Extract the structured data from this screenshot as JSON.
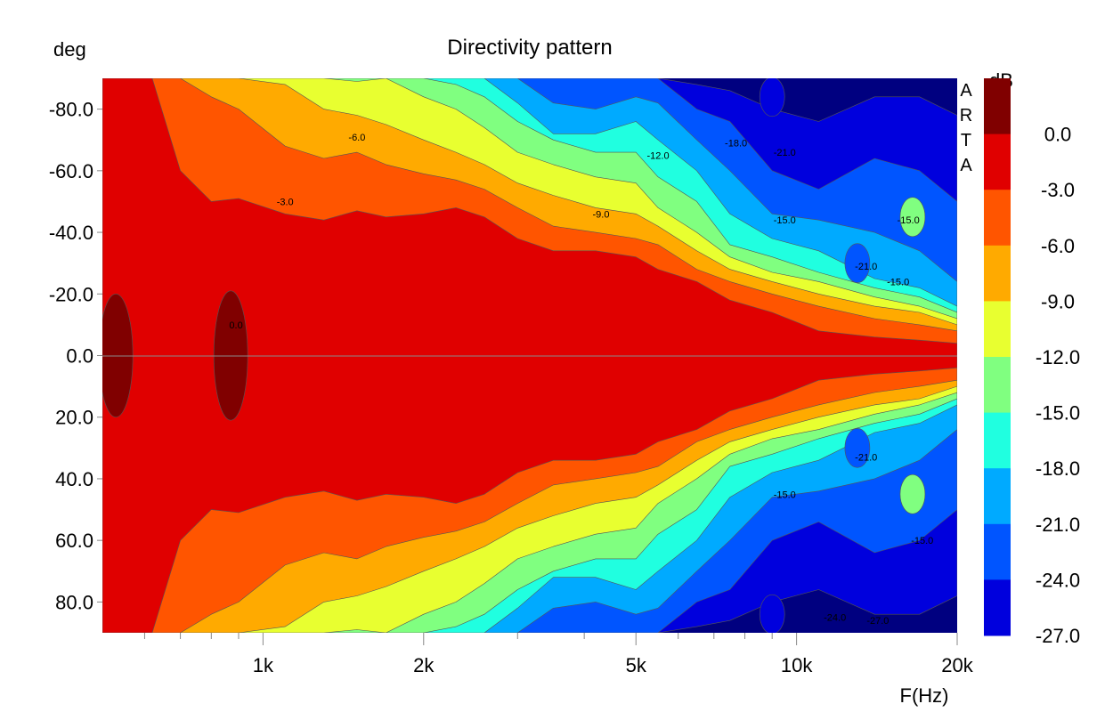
{
  "chart_data": {
    "type": "heatmap",
    "title": "Directivity pattern",
    "ylabel": "deg",
    "xlabel": "F(Hz)",
    "colorbar_unit": "dB",
    "watermark": [
      "A",
      "R",
      "T",
      "A"
    ],
    "x_scale": "log",
    "xlim": [
      500,
      20000
    ],
    "ylim": [
      -90,
      90
    ],
    "y_inverted": true,
    "x_ticks": [
      {
        "value": 1000,
        "label": "1k"
      },
      {
        "value": 2000,
        "label": "2k"
      },
      {
        "value": 5000,
        "label": "5k"
      },
      {
        "value": 10000,
        "label": "10k"
      },
      {
        "value": 20000,
        "label": "20k"
      }
    ],
    "x_minor_ticks": [
      600,
      700,
      800,
      900,
      3000,
      4000,
      6000,
      7000,
      8000,
      9000
    ],
    "y_ticks": [
      {
        "value": -80,
        "label": "-80.0"
      },
      {
        "value": -60,
        "label": "-60.0"
      },
      {
        "value": -40,
        "label": "-40.0"
      },
      {
        "value": -20,
        "label": "-20.0"
      },
      {
        "value": 0,
        "label": "0.0"
      },
      {
        "value": 20,
        "label": "20.0"
      },
      {
        "value": 40,
        "label": "40.0"
      },
      {
        "value": 60,
        "label": "60.0"
      },
      {
        "value": 80,
        "label": "80.0"
      }
    ],
    "levels": [
      {
        "label": "0.0",
        "color": "#800000"
      },
      {
        "label": "-3.0",
        "color": "#e00000"
      },
      {
        "label": "-6.0",
        "color": "#ff5500"
      },
      {
        "label": "-9.0",
        "color": "#ffaa00"
      },
      {
        "label": "-12.0",
        "color": "#e8ff30"
      },
      {
        "label": "-15.0",
        "color": "#80ff80"
      },
      {
        "label": "-18.0",
        "color": "#20ffe0"
      },
      {
        "label": "-21.0",
        "color": "#00aaff"
      },
      {
        "label": "-24.0",
        "color": "#0055ff"
      },
      {
        "label": "-27.0",
        "color": "#0000dd"
      }
    ],
    "deepest_color": "#000080",
    "contour_width_deg": [
      {
        "f": 500,
        "w": [
          90,
          90,
          90,
          90,
          90,
          90,
          90,
          90,
          90
        ]
      },
      {
        "f": 620,
        "w": [
          90,
          90,
          90,
          90,
          90,
          90,
          90,
          90,
          90
        ]
      },
      {
        "f": 700,
        "w": [
          60,
          90,
          90,
          90,
          90,
          90,
          90,
          90,
          90
        ]
      },
      {
        "f": 800,
        "w": [
          50,
          84,
          90,
          90,
          90,
          90,
          90,
          90,
          90
        ]
      },
      {
        "f": 900,
        "w": [
          51,
          80,
          90,
          90,
          90,
          90,
          90,
          90,
          90
        ]
      },
      {
        "f": 1100,
        "w": [
          46,
          68,
          88,
          90,
          90,
          90,
          90,
          90,
          90
        ]
      },
      {
        "f": 1300,
        "w": [
          44,
          64,
          80,
          90,
          90,
          90,
          90,
          90,
          90
        ]
      },
      {
        "f": 1500,
        "w": [
          47,
          66,
          78,
          89,
          90,
          90,
          90,
          90,
          90
        ]
      },
      {
        "f": 1700,
        "w": [
          45,
          62,
          75,
          90,
          90,
          90,
          90,
          90,
          90
        ]
      },
      {
        "f": 2000,
        "w": [
          46,
          59,
          70,
          84,
          90,
          90,
          90,
          90,
          90
        ]
      },
      {
        "f": 2300,
        "w": [
          48,
          57,
          66,
          80,
          88,
          90,
          90,
          90,
          90
        ]
      },
      {
        "f": 2600,
        "w": [
          45,
          54,
          62,
          74,
          84,
          90,
          90,
          90,
          90
        ]
      },
      {
        "f": 3000,
        "w": [
          38,
          48,
          56,
          66,
          76,
          82,
          90,
          90,
          90
        ]
      },
      {
        "f": 3500,
        "w": [
          34,
          42,
          52,
          62,
          70,
          72,
          82,
          90,
          90
        ]
      },
      {
        "f": 4200,
        "w": [
          34,
          40,
          48,
          58,
          66,
          72,
          80,
          90,
          90
        ]
      },
      {
        "f": 5000,
        "w": [
          32,
          38,
          46,
          56,
          66,
          76,
          84,
          90,
          90
        ]
      },
      {
        "f": 5500,
        "w": [
          28,
          36,
          42,
          48,
          58,
          70,
          82,
          90,
          90
        ]
      },
      {
        "f": 6500,
        "w": [
          24,
          28,
          34,
          40,
          50,
          60,
          70,
          80,
          88
        ]
      },
      {
        "f": 7500,
        "w": [
          18,
          24,
          28,
          32,
          36,
          46,
          60,
          76,
          86
        ]
      },
      {
        "f": 9000,
        "w": [
          14,
          20,
          24,
          27,
          32,
          38,
          46,
          60,
          80
        ]
      },
      {
        "f": 11000,
        "w": [
          8,
          16,
          20,
          24,
          27,
          34,
          44,
          54,
          76
        ]
      },
      {
        "f": 14000,
        "w": [
          6,
          12,
          16,
          19,
          22,
          25,
          40,
          64,
          84
        ]
      },
      {
        "f": 17000,
        "w": [
          5,
          10,
          14,
          16,
          19,
          22,
          34,
          60,
          84
        ]
      },
      {
        "f": 20000,
        "w": [
          4,
          8,
          10,
          12,
          14,
          16,
          24,
          50,
          78
        ]
      }
    ],
    "max_level_blobs": [
      {
        "f": 530,
        "deg_half_width": 20
      },
      {
        "f": 870,
        "deg_half_width": 21
      }
    ],
    "local_islands": [
      {
        "f": 16500,
        "deg": -45,
        "level": "-15.0"
      },
      {
        "f": 16500,
        "deg": 45,
        "level": "-15.0"
      },
      {
        "f": 13000,
        "deg": -30,
        "level": "-24.0"
      },
      {
        "f": 13000,
        "deg": 30,
        "level": "-24.0"
      },
      {
        "f": 9000,
        "deg": -84,
        "level": "-27.0"
      },
      {
        "f": 9000,
        "deg": 84,
        "level": "-27.0"
      }
    ],
    "contour_labels": [
      {
        "f": 890,
        "deg": -10,
        "text": "0.0"
      },
      {
        "f": 1100,
        "deg": -50,
        "text": "-3.0"
      },
      {
        "f": 1500,
        "deg": -71,
        "text": "-6.0"
      },
      {
        "f": 4300,
        "deg": -46,
        "text": "-9.0"
      },
      {
        "f": 5500,
        "deg": -65,
        "text": "-12.0"
      },
      {
        "f": 7700,
        "deg": -69,
        "text": "-18.0"
      },
      {
        "f": 9500,
        "deg": -66,
        "text": "-21.0"
      },
      {
        "f": 9500,
        "deg": -44,
        "text": "-15.0"
      },
      {
        "f": 16200,
        "deg": -44,
        "text": "-15.0"
      },
      {
        "f": 13500,
        "deg": -29,
        "text": "-21.0"
      },
      {
        "f": 15500,
        "deg": -24,
        "text": "-15.0"
      },
      {
        "f": 13500,
        "deg": 33,
        "text": "-21.0"
      },
      {
        "f": 9500,
        "deg": 45,
        "text": "-15.0"
      },
      {
        "f": 17200,
        "deg": 60,
        "text": "-15.0"
      },
      {
        "f": 11800,
        "deg": 85,
        "text": "-24.0"
      },
      {
        "f": 14200,
        "deg": 86,
        "text": "-27.0"
      }
    ]
  }
}
